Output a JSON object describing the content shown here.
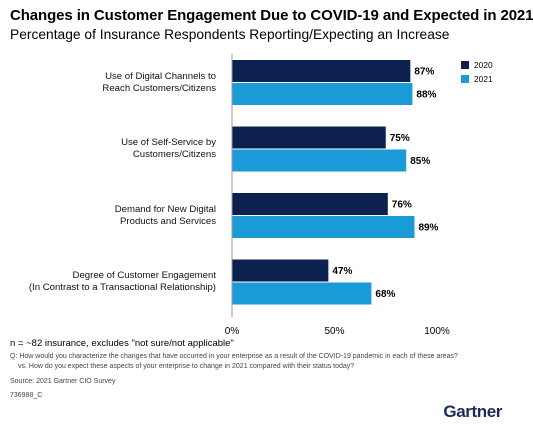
{
  "chart_data": {
    "type": "bar",
    "orientation": "horizontal",
    "title": "Changes in Customer Engagement Due to COVID-19 and Expected in 2021",
    "subtitle": "Percentage of Insurance Respondents Reporting/Expecting an Increase",
    "categories": [
      [
        "Use of Digital Channels to",
        "Reach Customers/Citizens"
      ],
      [
        "Use of Self-Service by",
        "Customers/Citizens"
      ],
      [
        "Demand for New Digital",
        "Products and Services"
      ],
      [
        "Degree of Customer Engagement",
        "(In Contrast to a Transactional Relationship)"
      ]
    ],
    "series": [
      {
        "name": "2020",
        "color": "#0c2150",
        "values": [
          87,
          75,
          76,
          47
        ],
        "labels": [
          "87%",
          "75%",
          "76%",
          "47%"
        ]
      },
      {
        "name": "2021",
        "color": "#1a9ad6",
        "values": [
          88,
          85,
          89,
          68
        ],
        "labels": [
          "88%",
          "85%",
          "89%",
          "68%"
        ]
      }
    ],
    "xlim": [
      0,
      100
    ],
    "xticks": [
      0,
      50,
      100
    ],
    "xtick_labels": [
      "0%",
      "50%",
      "100%"
    ],
    "legend_position": "top-right",
    "grid": false
  },
  "footnote_n": "n = ~82 insurance, excludes \"not sure/not applicable\"",
  "footnote_q": [
    "Q: How would you characterize the changes that have occurred in your enterprise as a result of the COVID-19 pandemic in each of these areas?",
    "vs. How do you expect these aspects of your enterprise to change in 2021 compared with their status today?"
  ],
  "source": "Source: 2021 Gartner CIO Survey",
  "doc_id": "736988_C",
  "brand": "Gartner"
}
